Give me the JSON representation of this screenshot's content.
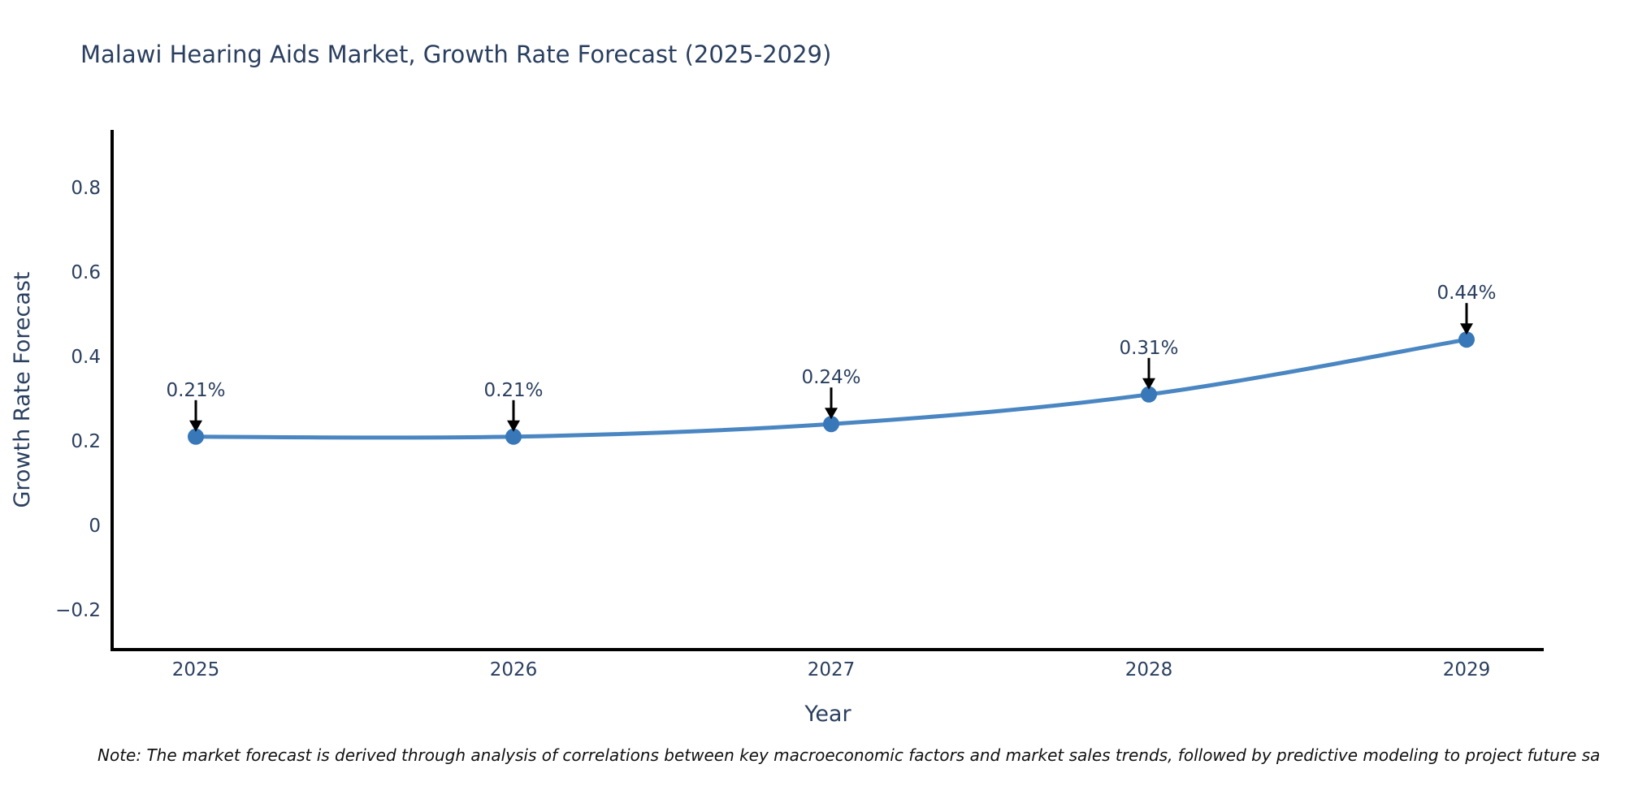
{
  "title": "Malawi Hearing Aids Market, Growth Rate Forecast (2025-2029)",
  "chart_data": {
    "type": "line",
    "x": [
      2025,
      2026,
      2027,
      2028,
      2029
    ],
    "series": [
      {
        "name": "Growth Rate Forecast",
        "values": [
          0.21,
          0.21,
          0.24,
          0.31,
          0.44
        ]
      }
    ],
    "point_labels": [
      "0.21%",
      "0.21%",
      "0.24%",
      "0.31%",
      "0.44%"
    ],
    "title": "Malawi Hearing Aids Market, Growth Rate Forecast (2025-2029)",
    "xlabel": "Year",
    "ylabel": "Growth Rate Forecast",
    "xtick_labels": [
      "2025",
      "2026",
      "2027",
      "2028",
      "2029"
    ],
    "yticks": [
      0.8,
      0.6,
      0.4,
      0.2,
      0,
      -0.2
    ],
    "ytick_labels": [
      "0.8",
      "0.6",
      "0.4",
      "0.2",
      "0",
      "−0.2"
    ],
    "ylim": [
      -0.3,
      0.95
    ],
    "grid": false,
    "legend_position": "none",
    "line_shape": "spline",
    "annotation_arrows": "down-to-point"
  },
  "note": "Note: The market forecast is derived through analysis of correlations between key macroeconomic factors and market sales trends, followed by predictive modeling to project future sa",
  "colors": {
    "title_text": "#2a3f5f",
    "axis_text": "#2a3f5f",
    "axis_line": "#000000",
    "series_line": "#4a86c2",
    "marker_fill": "#3878b8",
    "arrow": "#000000",
    "note_text": "#111111",
    "background": "#ffffff"
  }
}
